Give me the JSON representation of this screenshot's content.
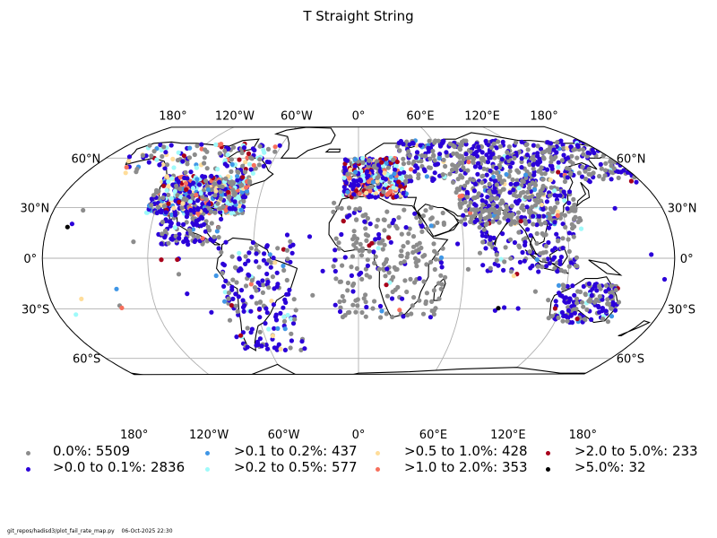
{
  "title": "T Straight String",
  "map": {
    "projection": "robinson",
    "lon_ticks_top": [
      "180°",
      "120°W",
      "60°W",
      "0°",
      "60°E",
      "120°E",
      "180°"
    ],
    "lon_ticks_bottom": [
      "180°",
      "120°W",
      "60°W",
      "0°",
      "60°E",
      "120°E",
      "180°"
    ],
    "lat_ticks_left": [
      "60°N",
      "30°N",
      "0°",
      "30°S",
      "60°S"
    ],
    "lat_ticks_right": [
      "60°N",
      "30°N",
      "0°",
      "30°S",
      "60°S"
    ],
    "gridlines": true,
    "coastline_color": "#000000",
    "gridline_color": "#b0b0b0"
  },
  "legend": {
    "items": [
      {
        "label": "0.0%: 5509",
        "color": "#8c8c8c"
      },
      {
        "label": ">0.0 to 0.1%: 2836",
        "color": "#2b00d9"
      },
      {
        "label": ">0.1 to 0.2%: 437",
        "color": "#3f96e6"
      },
      {
        "label": ">0.2 to 0.5%: 577",
        "color": "#9ffafa"
      },
      {
        "label": ">0.5 to 1.0%: 428",
        "color": "#ffdd9a"
      },
      {
        "label": ">1.0 to 2.0%: 353",
        "color": "#f76f5c"
      },
      {
        "label": ">2.0 to 5.0%: 233",
        "color": "#a8001a"
      },
      {
        "label": ">5.0%: 32",
        "color": "#000000"
      }
    ]
  },
  "footer": {
    "script": "git_repos/hadisd3/plot_fail_rate_map.py",
    "timestamp": "06-Oct-2025 22:30"
  }
}
